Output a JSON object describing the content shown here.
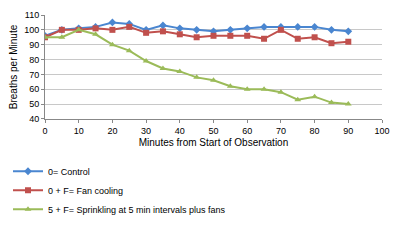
{
  "chart_data": {
    "type": "line",
    "x_label": "Minutes from Start of Observation",
    "y_label": "Breaths per Minute",
    "x": [
      0,
      5,
      10,
      15,
      20,
      25,
      30,
      35,
      40,
      45,
      50,
      55,
      60,
      65,
      70,
      75,
      80,
      85,
      90
    ],
    "series": [
      {
        "name": "0= Control",
        "color": "#4a86d0",
        "marker": "diamond",
        "values": [
          96,
          100,
          101,
          102,
          105,
          104,
          100,
          103,
          101,
          100,
          99,
          100,
          101,
          102,
          102,
          102,
          102,
          100,
          99
        ]
      },
      {
        "name": "0 + F= Fan cooling",
        "color": "#c0504d",
        "marker": "square",
        "values": [
          95,
          100,
          100,
          101,
          100,
          102,
          98,
          99,
          97,
          95,
          96,
          96,
          96,
          94,
          100,
          94,
          95,
          91,
          92
        ]
      },
      {
        "name": "5 + F= Sprinkling at 5 min intervals plus fans",
        "color": "#9bbb59",
        "marker": "triangle-up",
        "values": [
          95,
          95,
          100,
          97,
          90,
          86,
          79,
          74,
          72,
          68,
          66,
          62,
          60,
          60,
          58,
          53,
          55,
          51,
          50
        ]
      }
    ],
    "xlim": [
      0,
      100
    ],
    "xticks": [
      0,
      10,
      20,
      30,
      40,
      50,
      60,
      70,
      80,
      90,
      100
    ],
    "ylim": [
      40,
      110
    ],
    "yticks": [
      40,
      50,
      60,
      70,
      80,
      90,
      100,
      110
    ],
    "grid": true,
    "legend": "bottom"
  }
}
